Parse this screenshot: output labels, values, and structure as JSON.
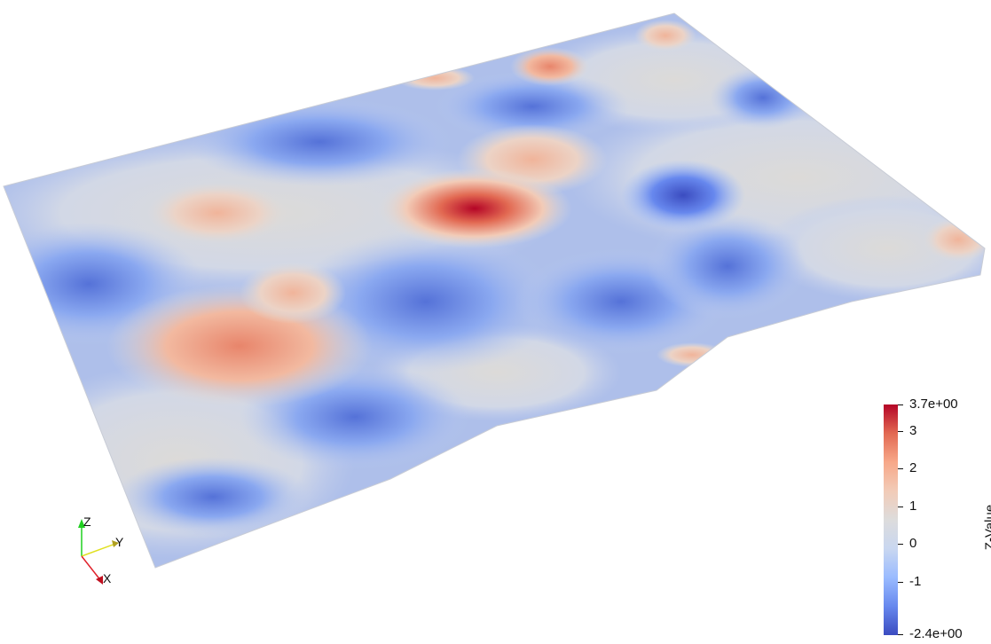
{
  "colorbar": {
    "title": "Z-Value",
    "max_label": "3.7e+00",
    "min_label": "-2.4e+00",
    "range": [
      -2.4,
      3.7
    ],
    "ticks": [
      "3",
      "2",
      "1",
      "0",
      "-1"
    ],
    "tick_values": [
      3,
      2,
      1,
      0,
      -1
    ],
    "colormap": [
      "#3b4cc0",
      "#6788ee",
      "#9abbff",
      "#c9d7f0",
      "#dddcdc",
      "#f2cbb7",
      "#f7a889",
      "#e26952",
      "#b40426"
    ]
  },
  "orientation_axes": {
    "x_label": "X",
    "y_label": "Y",
    "z_label": "Z",
    "x_color": "#e0202a",
    "y_color": "#e0e020",
    "z_color": "#20d020"
  }
}
